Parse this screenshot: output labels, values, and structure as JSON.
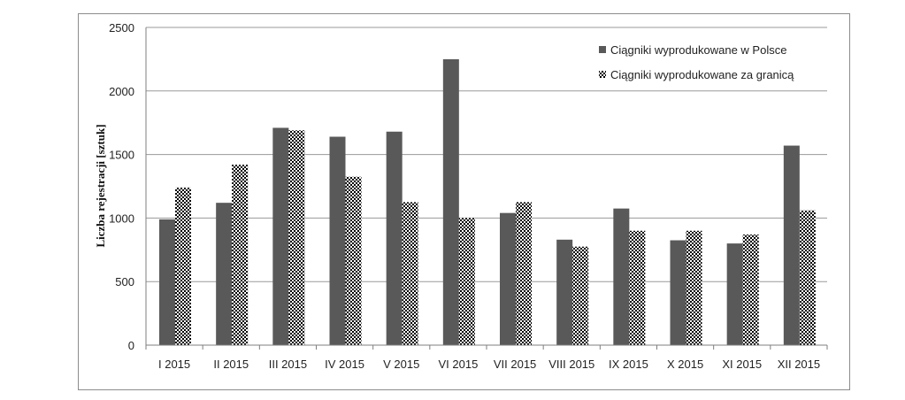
{
  "chart_data": {
    "type": "bar",
    "categories": [
      "I 2015",
      "II 2015",
      "III 2015",
      "IV 2015",
      "V 2015",
      "VI 2015",
      "VII 2015",
      "VIII 2015",
      "IX 2015",
      "X 2015",
      "XI 2015",
      "XII 2015"
    ],
    "series": [
      {
        "name": "Ciągniki wyprodukowane w Polsce",
        "values": [
          990,
          1120,
          1710,
          1640,
          1680,
          2250,
          1040,
          830,
          1075,
          825,
          800,
          1570
        ],
        "color": "#595959",
        "pattern": "solid"
      },
      {
        "name": "Ciągniki wyprodukowane za granicą",
        "values": [
          1240,
          1420,
          1690,
          1325,
          1125,
          1000,
          1125,
          775,
          900,
          900,
          870,
          1060
        ],
        "color": "#000000",
        "pattern": "checkerboard"
      }
    ],
    "title": "",
    "xlabel": "",
    "ylabel": "Liczba rejestracji [sztuk]",
    "ylim": [
      0,
      2500
    ],
    "yticks": [
      0,
      500,
      1000,
      1500,
      2000,
      2500
    ],
    "grid": true,
    "legend_position": "top-right"
  }
}
